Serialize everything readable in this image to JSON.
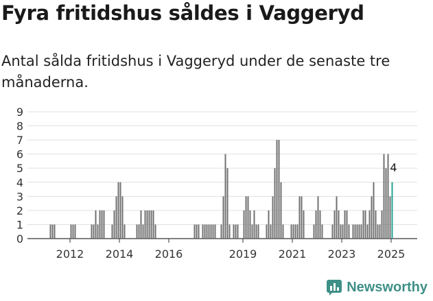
{
  "header": {
    "title": "Fyra fritidshus såldes i Vaggeryd",
    "subtitle": "Antal sålda fritidshus i Vaggeryd under de senaste tre månaderna."
  },
  "brand": {
    "name": "Newsworthy",
    "icon": "newsworthy-logo-icon",
    "color": "#3e8f87"
  },
  "chart_data": {
    "type": "bar",
    "title": "",
    "xlabel": "",
    "ylabel": "",
    "ylim": [
      0,
      9
    ],
    "y_ticks": [
      0,
      1,
      2,
      3,
      4,
      5,
      6,
      7,
      8,
      9
    ],
    "x_range": [
      "2011-01",
      "2025-12"
    ],
    "x_ticks": [
      "2012",
      "2014",
      "2016",
      "2019",
      "2021",
      "2023",
      "2025"
    ],
    "grid": true,
    "bar_color": "#707070",
    "highlight_color": "#27a196",
    "highlight_label": "4",
    "series": [
      {
        "values": [
          [
            "2011-09",
            1
          ],
          [
            "2011-10",
            1
          ],
          [
            "2011-11",
            1
          ],
          [
            "2012-07",
            1
          ],
          [
            "2012-08",
            1
          ],
          [
            "2012-09",
            1
          ],
          [
            "2013-05",
            1
          ],
          [
            "2013-06",
            1
          ],
          [
            "2013-07",
            2
          ],
          [
            "2013-08",
            1
          ],
          [
            "2013-09",
            2
          ],
          [
            "2013-10",
            2
          ],
          [
            "2013-11",
            2
          ],
          [
            "2014-03",
            1
          ],
          [
            "2014-04",
            2
          ],
          [
            "2014-05",
            3
          ],
          [
            "2014-06",
            4
          ],
          [
            "2014-07",
            4
          ],
          [
            "2014-08",
            3
          ],
          [
            "2014-09",
            1
          ],
          [
            "2015-03",
            1
          ],
          [
            "2015-04",
            1
          ],
          [
            "2015-05",
            2
          ],
          [
            "2015-06",
            1
          ],
          [
            "2015-07",
            2
          ],
          [
            "2015-08",
            2
          ],
          [
            "2015-09",
            2
          ],
          [
            "2015-10",
            2
          ],
          [
            "2015-11",
            2
          ],
          [
            "2015-12",
            1
          ],
          [
            "2017-07",
            1
          ],
          [
            "2017-08",
            1
          ],
          [
            "2017-09",
            1
          ],
          [
            "2017-11",
            1
          ],
          [
            "2017-12",
            1
          ],
          [
            "2018-01",
            1
          ],
          [
            "2018-02",
            1
          ],
          [
            "2018-03",
            1
          ],
          [
            "2018-04",
            1
          ],
          [
            "2018-05",
            1
          ],
          [
            "2018-08",
            1
          ],
          [
            "2018-09",
            3
          ],
          [
            "2018-10",
            6
          ],
          [
            "2018-11",
            5
          ],
          [
            "2018-12",
            1
          ],
          [
            "2019-02",
            1
          ],
          [
            "2019-03",
            1
          ],
          [
            "2019-04",
            1
          ],
          [
            "2019-07",
            2
          ],
          [
            "2019-08",
            3
          ],
          [
            "2019-09",
            3
          ],
          [
            "2019-10",
            2
          ],
          [
            "2019-11",
            1
          ],
          [
            "2019-12",
            2
          ],
          [
            "2020-01",
            1
          ],
          [
            "2020-02",
            1
          ],
          [
            "2020-06",
            1
          ],
          [
            "2020-07",
            2
          ],
          [
            "2020-08",
            1
          ],
          [
            "2020-09",
            3
          ],
          [
            "2020-10",
            5
          ],
          [
            "2020-11",
            7
          ],
          [
            "2020-12",
            7
          ],
          [
            "2021-01",
            4
          ],
          [
            "2021-02",
            1
          ],
          [
            "2021-06",
            1
          ],
          [
            "2021-07",
            1
          ],
          [
            "2021-08",
            1
          ],
          [
            "2021-09",
            1
          ],
          [
            "2021-10",
            3
          ],
          [
            "2021-11",
            3
          ],
          [
            "2021-12",
            2
          ],
          [
            "2022-05",
            1
          ],
          [
            "2022-06",
            2
          ],
          [
            "2022-07",
            3
          ],
          [
            "2022-08",
            2
          ],
          [
            "2022-09",
            1
          ],
          [
            "2023-02",
            1
          ],
          [
            "2023-03",
            2
          ],
          [
            "2023-04",
            3
          ],
          [
            "2023-05",
            2
          ],
          [
            "2023-06",
            1
          ],
          [
            "2023-07",
            1
          ],
          [
            "2023-08",
            2
          ],
          [
            "2023-09",
            2
          ],
          [
            "2023-10",
            1
          ],
          [
            "2023-12",
            1
          ],
          [
            "2024-01",
            1
          ],
          [
            "2024-02",
            1
          ],
          [
            "2024-03",
            1
          ],
          [
            "2024-04",
            1
          ],
          [
            "2024-05",
            2
          ],
          [
            "2024-06",
            2
          ],
          [
            "2024-07",
            1
          ],
          [
            "2024-08",
            2
          ],
          [
            "2024-09",
            3
          ],
          [
            "2024-10",
            4
          ],
          [
            "2024-11",
            2
          ],
          [
            "2024-12",
            1
          ],
          [
            "2025-01",
            1
          ],
          [
            "2025-02",
            2
          ],
          [
            "2025-03",
            6
          ],
          [
            "2025-04",
            5
          ],
          [
            "2025-05",
            6
          ],
          [
            "2025-06",
            3
          ],
          [
            "2025-07",
            4
          ]
        ]
      }
    ]
  }
}
